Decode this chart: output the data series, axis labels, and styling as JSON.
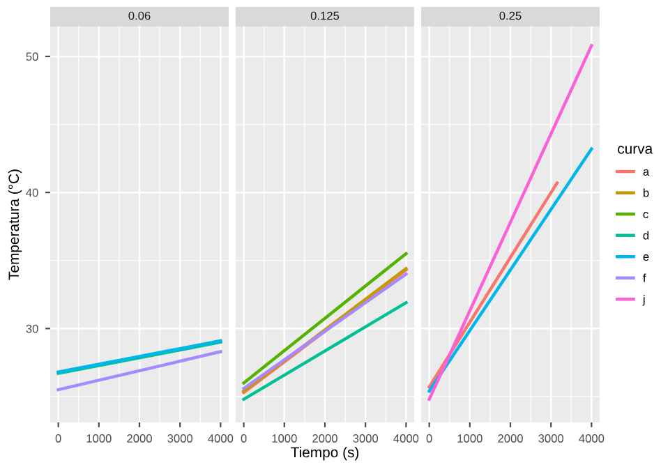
{
  "chart_data": [
    {
      "type": "line",
      "title": "0.06",
      "legend": "right",
      "ylabel": "Temperatura (°C)",
      "xlim": [
        -200,
        4200
      ],
      "ylim": [
        23.1,
        52.2
      ],
      "xticks": [
        0,
        1000,
        2000,
        3000,
        4000
      ],
      "yticks": [
        30,
        40,
        50
      ],
      "grid": true,
      "series": [
        {
          "name": "d",
          "color": "#00c094",
          "x": [
            0,
            4000
          ],
          "values": [
            26.7,
            29.0
          ]
        },
        {
          "name": "e",
          "color": "#00b6eb",
          "x": [
            0,
            4000
          ],
          "values": [
            26.8,
            29.1
          ]
        },
        {
          "name": "f",
          "color": "#a58aff",
          "x": [
            0,
            4000
          ],
          "values": [
            25.5,
            28.3
          ]
        }
      ]
    },
    {
      "type": "line",
      "title": "0.125",
      "legend": "right",
      "xlabel": "Tiempo (s)",
      "xlim": [
        -200,
        4200
      ],
      "ylim": [
        23.1,
        52.2
      ],
      "xticks": [
        0,
        1000,
        2000,
        3000,
        4000
      ],
      "yticks": [
        30,
        40,
        50
      ],
      "grid": true,
      "tick_labels": "x",
      "series": [
        {
          "name": "a",
          "color": "#f8766d",
          "x": [
            0,
            4000
          ],
          "values": [
            25.3,
            34.3
          ]
        },
        {
          "name": "b",
          "color": "#c49a00",
          "x": [
            0,
            4000
          ],
          "values": [
            25.4,
            34.4
          ]
        },
        {
          "name": "c",
          "color": "#53b400",
          "x": [
            0,
            4000
          ],
          "values": [
            26.0,
            35.5
          ]
        },
        {
          "name": "d",
          "color": "#00c094",
          "x": [
            0,
            4000
          ],
          "values": [
            24.8,
            31.9
          ]
        },
        {
          "name": "f",
          "color": "#a58aff",
          "x": [
            0,
            4000
          ],
          "values": [
            25.6,
            34.0
          ]
        }
      ]
    },
    {
      "type": "line",
      "title": "0.25",
      "legend_title": "curva",
      "legend": "right",
      "xlim": [
        -200,
        4200
      ],
      "ylim": [
        23.1,
        52.2
      ],
      "xticks": [
        0,
        1000,
        2000,
        3000,
        4000
      ],
      "yticks": [
        30,
        40,
        50
      ],
      "grid": true,
      "tick_labels": "x",
      "series": [
        {
          "name": "a",
          "color": "#f8766d",
          "x": [
            0,
            3150
          ],
          "values": [
            25.7,
            40.7
          ]
        },
        {
          "name": "e",
          "color": "#00b6eb",
          "x": [
            0,
            4000
          ],
          "values": [
            25.4,
            43.2
          ]
        },
        {
          "name": "j",
          "color": "#fb61d7",
          "x": [
            0,
            4000
          ],
          "values": [
            24.8,
            50.8
          ]
        }
      ]
    }
  ]
}
